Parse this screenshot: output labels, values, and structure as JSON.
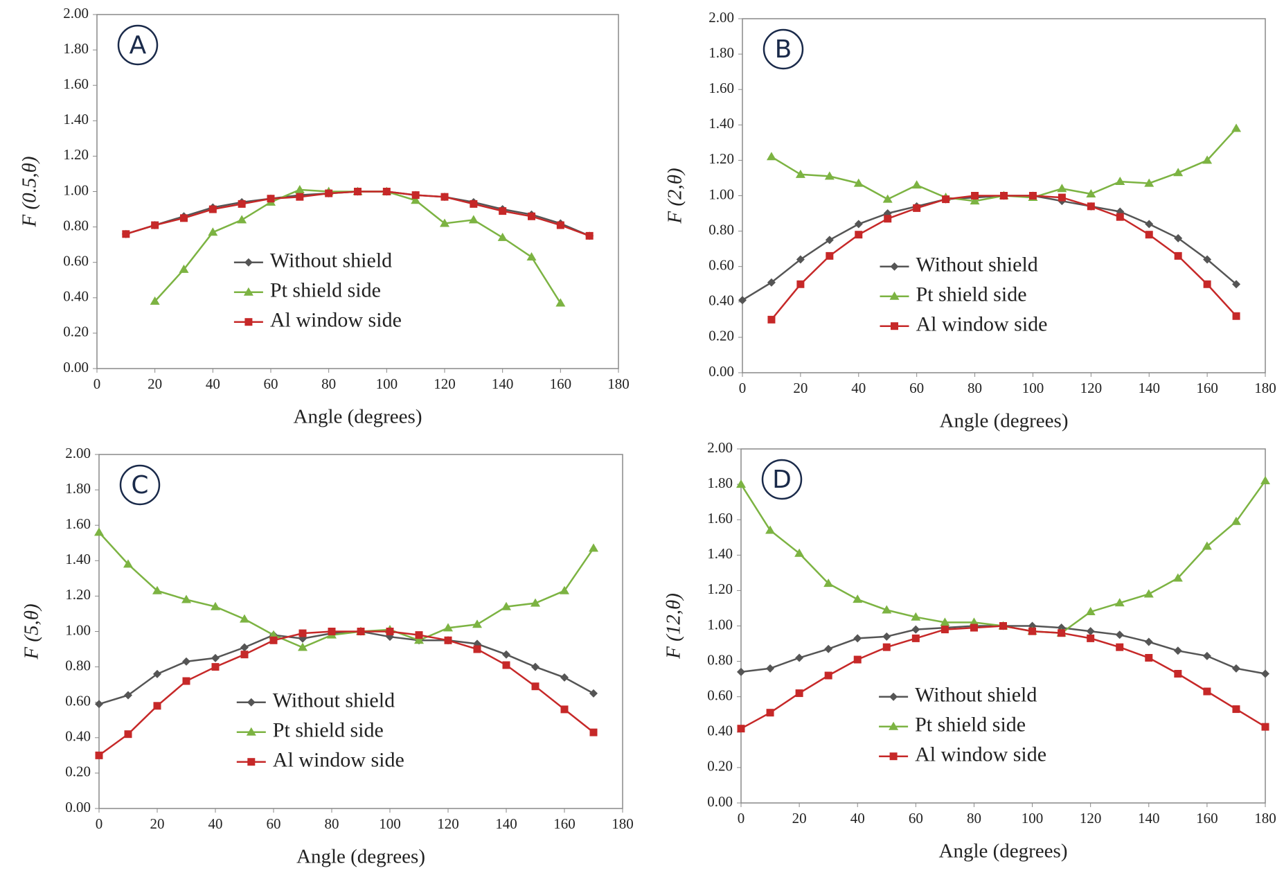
{
  "chart_data": [
    {
      "type": "line",
      "panel": "A",
      "ylabel": "F (0.5,θ)",
      "xlabel": "Angle (degrees)",
      "x": [
        10,
        20,
        30,
        40,
        50,
        60,
        70,
        80,
        90,
        100,
        110,
        120,
        130,
        140,
        150,
        160,
        170
      ],
      "xlim": [
        0,
        180
      ],
      "xticks": [
        0,
        20,
        40,
        60,
        80,
        100,
        120,
        140,
        160,
        180
      ],
      "ylim": [
        0,
        2
      ],
      "yticks": [
        {
          "value": 0,
          "label": "0.00"
        },
        {
          "value": 0.2,
          "label": "0.20"
        },
        {
          "value": 0.4,
          "label": "0.40"
        },
        {
          "value": 0.6,
          "label": "0.60"
        },
        {
          "value": 0.8,
          "label": "0.80"
        },
        {
          "value": 1,
          "label": "1.00"
        },
        {
          "value": 1.2,
          "label": "1.20"
        },
        {
          "value": 1.4,
          "label": "1.40"
        },
        {
          "value": 1.6,
          "label": "1.60"
        },
        {
          "value": 1.8,
          "label": "1.80"
        },
        {
          "value": 2,
          "label": "2.00"
        }
      ],
      "series": [
        {
          "name": "Without shield",
          "color": "#555555",
          "marker": "diamond",
          "values": [
            0.76,
            0.81,
            0.86,
            0.91,
            0.94,
            0.96,
            0.98,
            0.99,
            1.0,
            1.0,
            0.98,
            0.97,
            0.94,
            0.9,
            0.87,
            0.82,
            0.75
          ]
        },
        {
          "name": "Pt shield side",
          "color": "#7cb342",
          "marker": "triangle",
          "values": [
            null,
            0.38,
            0.56,
            0.77,
            0.84,
            0.94,
            1.01,
            1.0,
            1.0,
            1.0,
            0.95,
            0.82,
            0.84,
            0.74,
            0.63,
            0.37,
            null
          ]
        },
        {
          "name": "Al window side",
          "color": "#c62828",
          "marker": "square",
          "values": [
            0.76,
            0.81,
            0.85,
            0.9,
            0.93,
            0.96,
            0.97,
            0.99,
            1.0,
            1.0,
            0.98,
            0.97,
            0.93,
            0.89,
            0.86,
            0.81,
            0.75
          ]
        }
      ]
    },
    {
      "type": "line",
      "panel": "B",
      "ylabel": "F (2,θ)",
      "xlabel": "Angle (degrees)",
      "x": [
        0,
        10,
        20,
        30,
        40,
        50,
        60,
        70,
        80,
        90,
        100,
        110,
        120,
        130,
        140,
        150,
        160,
        170
      ],
      "xlim": [
        0,
        180
      ],
      "xticks": [
        0,
        20,
        40,
        60,
        80,
        100,
        120,
        140,
        160,
        180
      ],
      "ylim": [
        0,
        2
      ],
      "yticks": [
        {
          "value": 0,
          "label": "0.00"
        },
        {
          "value": 0.2,
          "label": "0.20"
        },
        {
          "value": 0.4,
          "label": "0.40"
        },
        {
          "value": 0.6,
          "label": "0.60"
        },
        {
          "value": 0.8,
          "label": "0.80"
        },
        {
          "value": 1,
          "label": "1.00"
        },
        {
          "value": 1.2,
          "label": "1.20"
        },
        {
          "value": 1.4,
          "label": "1.40"
        },
        {
          "value": 1.6,
          "label": "1.60"
        },
        {
          "value": 1.8,
          "label": "1.80"
        },
        {
          "value": 2,
          "label": "2.00"
        }
      ],
      "series": [
        {
          "name": "Without shield",
          "color": "#555555",
          "marker": "diamond",
          "values": [
            0.41,
            0.51,
            0.64,
            0.75,
            0.84,
            0.9,
            0.94,
            0.98,
            0.99,
            1.0,
            1.0,
            0.97,
            0.94,
            0.91,
            0.84,
            0.76,
            0.64,
            0.5
          ]
        },
        {
          "name": "Pt shield side",
          "color": "#7cb342",
          "marker": "triangle",
          "values": [
            null,
            1.22,
            1.12,
            1.11,
            1.07,
            0.98,
            1.06,
            0.99,
            0.97,
            1.0,
            0.99,
            1.04,
            1.01,
            1.08,
            1.07,
            1.13,
            1.2,
            1.38
          ]
        },
        {
          "name": "Al window side",
          "color": "#c62828",
          "marker": "square",
          "values": [
            null,
            0.3,
            0.5,
            0.66,
            0.78,
            0.87,
            0.93,
            0.98,
            1.0,
            1.0,
            1.0,
            0.99,
            0.94,
            0.88,
            0.78,
            0.66,
            0.5,
            0.32
          ]
        }
      ]
    },
    {
      "type": "line",
      "panel": "C",
      "ylabel": "F (5,θ)",
      "xlabel": "Angle (degrees)",
      "x": [
        0,
        10,
        20,
        30,
        40,
        50,
        60,
        70,
        80,
        90,
        100,
        110,
        120,
        130,
        140,
        150,
        160,
        170
      ],
      "xlim": [
        0,
        180
      ],
      "xticks": [
        0,
        20,
        40,
        60,
        80,
        100,
        120,
        140,
        160,
        180
      ],
      "ylim": [
        0,
        2
      ],
      "yticks": [
        {
          "value": 0,
          "label": "0.00"
        },
        {
          "value": 0.2,
          "label": "0.20"
        },
        {
          "value": 0.4,
          "label": "0.40"
        },
        {
          "value": 0.6,
          "label": "0.60"
        },
        {
          "value": 0.8,
          "label": "0.80"
        },
        {
          "value": 1,
          "label": "1.00"
        },
        {
          "value": 1.2,
          "label": "1.20"
        },
        {
          "value": 1.4,
          "label": "1.40"
        },
        {
          "value": 1.6,
          "label": "1.60"
        },
        {
          "value": 1.8,
          "label": "1.80"
        },
        {
          "value": 2,
          "label": "2.00"
        }
      ],
      "series": [
        {
          "name": "Without shield",
          "color": "#555555",
          "marker": "diamond",
          "values": [
            0.59,
            0.64,
            0.76,
            0.83,
            0.85,
            0.91,
            0.98,
            0.96,
            0.99,
            1.0,
            0.97,
            0.95,
            0.95,
            0.93,
            0.87,
            0.8,
            0.74,
            0.65
          ]
        },
        {
          "name": "Pt shield side",
          "color": "#7cb342",
          "marker": "triangle",
          "values": [
            1.56,
            1.38,
            1.23,
            1.18,
            1.14,
            1.07,
            0.98,
            0.91,
            0.98,
            1.0,
            1.01,
            0.95,
            1.02,
            1.04,
            1.14,
            1.16,
            1.23,
            1.47
          ]
        },
        {
          "name": "Al window side",
          "color": "#c62828",
          "marker": "square",
          "values": [
            0.3,
            0.42,
            0.58,
            0.72,
            0.8,
            0.87,
            0.95,
            0.99,
            1.0,
            1.0,
            1.0,
            0.98,
            0.95,
            0.9,
            0.81,
            0.69,
            0.56,
            0.43
          ]
        }
      ]
    },
    {
      "type": "line",
      "panel": "D",
      "ylabel": "F (12,θ)",
      "xlabel": "Angle (degrees)",
      "x": [
        0,
        10,
        20,
        30,
        40,
        50,
        60,
        70,
        80,
        90,
        100,
        110,
        120,
        130,
        140,
        150,
        160,
        170,
        180
      ],
      "xlim": [
        0,
        180
      ],
      "xticks": [
        0,
        20,
        40,
        60,
        80,
        100,
        120,
        140,
        160,
        180
      ],
      "ylim": [
        0,
        2
      ],
      "yticks": [
        {
          "value": 0,
          "label": "0.00"
        },
        {
          "value": 0.2,
          "label": "0.20"
        },
        {
          "value": 0.4,
          "label": "0.40"
        },
        {
          "value": 0.6,
          "label": "0.60"
        },
        {
          "value": 0.8,
          "label": "0.80"
        },
        {
          "value": 1,
          "label": "1.00"
        },
        {
          "value": 1.2,
          "label": "1.20"
        },
        {
          "value": 1.4,
          "label": "1.40"
        },
        {
          "value": 1.6,
          "label": "1.60"
        },
        {
          "value": 1.8,
          "label": "1.80"
        },
        {
          "value": 2,
          "label": "2.00"
        }
      ],
      "series": [
        {
          "name": "Without shield",
          "color": "#555555",
          "marker": "diamond",
          "values": [
            0.74,
            0.76,
            0.82,
            0.87,
            0.93,
            0.94,
            0.98,
            0.99,
            1.0,
            1.0,
            1.0,
            0.99,
            0.97,
            0.95,
            0.91,
            0.86,
            0.83,
            0.76,
            0.73
          ]
        },
        {
          "name": "Pt shield side",
          "color": "#7cb342",
          "marker": "triangle",
          "values": [
            1.8,
            1.54,
            1.41,
            1.24,
            1.15,
            1.09,
            1.05,
            1.02,
            1.02,
            1.0,
            0.97,
            0.96,
            1.08,
            1.13,
            1.18,
            1.27,
            1.45,
            1.59,
            1.82
          ]
        },
        {
          "name": "Al window side",
          "color": "#c62828",
          "marker": "square",
          "values": [
            0.42,
            0.51,
            0.62,
            0.72,
            0.81,
            0.88,
            0.93,
            0.98,
            0.99,
            1.0,
            0.97,
            0.96,
            0.93,
            0.88,
            0.82,
            0.73,
            0.63,
            0.53,
            0.43
          ]
        }
      ]
    }
  ]
}
